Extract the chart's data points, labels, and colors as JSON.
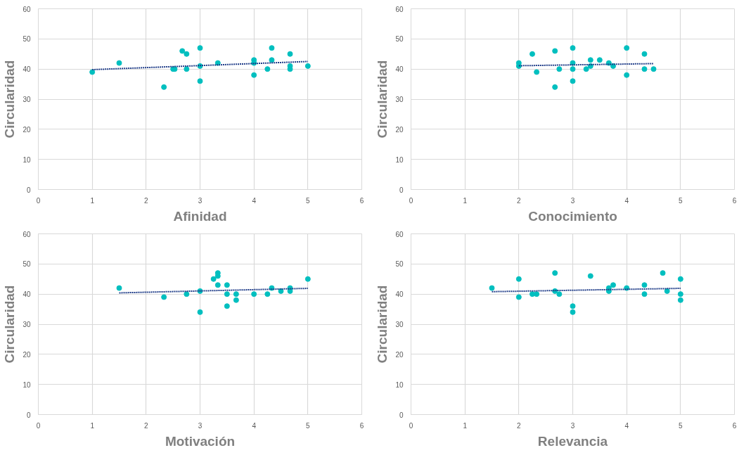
{
  "chart_data": [
    {
      "type": "scatter",
      "xlabel": "Afinidad",
      "ylabel": "Circularidad",
      "xlim": [
        0,
        6
      ],
      "ylim": [
        0,
        60
      ],
      "xticks": [
        0,
        1,
        2,
        3,
        4,
        5,
        6
      ],
      "yticks": [
        0,
        10,
        20,
        30,
        40,
        50,
        60
      ],
      "grid": true,
      "marker": "circle",
      "series": [
        {
          "color": "#00bfbf",
          "x": [
            1,
            1.5,
            2.33,
            2.5,
            2.53,
            2.67,
            2.75,
            2.75,
            3,
            3,
            3,
            3.33,
            4,
            4,
            4,
            4.25,
            4.33,
            4.33,
            4.67,
            4.67,
            4.67,
            5
          ],
          "values": [
            39,
            42,
            34,
            40,
            40,
            46,
            45,
            40,
            47,
            41,
            36,
            42,
            43,
            42,
            38,
            40,
            47,
            43,
            45,
            41,
            40,
            41
          ]
        },
        {
          "type": "line",
          "color": "#1f3c88",
          "line_style": "dotted",
          "marker": "none",
          "x": [
            1,
            5
          ],
          "values": [
            39.8,
            42.5
          ]
        }
      ]
    },
    {
      "type": "scatter",
      "xlabel": "Conocimiento",
      "ylabel": "Circularidad",
      "xlim": [
        0,
        6
      ],
      "ylim": [
        0,
        60
      ],
      "xticks": [
        0,
        1,
        2,
        3,
        4,
        5,
        6
      ],
      "yticks": [
        0,
        10,
        20,
        30,
        40,
        50,
        60
      ],
      "grid": true,
      "marker": "circle",
      "series": [
        {
          "color": "#00bfbf",
          "x": [
            2,
            2,
            2.25,
            2.33,
            2.67,
            2.67,
            2.75,
            3,
            3,
            3,
            3,
            3.25,
            3.33,
            3.33,
            3.5,
            3.67,
            3.75,
            4,
            4,
            4.33,
            4.33,
            4.5
          ],
          "values": [
            42,
            41,
            45,
            39,
            46,
            34,
            40,
            47,
            42,
            40,
            36,
            40,
            43,
            41,
            43,
            42,
            41,
            47,
            38,
            45,
            40,
            40
          ]
        },
        {
          "type": "line",
          "color": "#1f3c88",
          "line_style": "dotted",
          "marker": "none",
          "x": [
            2,
            4.5
          ],
          "values": [
            41.1,
            41.8
          ]
        }
      ]
    },
    {
      "type": "scatter",
      "xlabel": "Motivación",
      "ylabel": "Circularidad",
      "xlim": [
        0,
        6
      ],
      "ylim": [
        0,
        60
      ],
      "xticks": [
        0,
        1,
        2,
        3,
        4,
        5,
        6
      ],
      "yticks": [
        0,
        10,
        20,
        30,
        40,
        50,
        60
      ],
      "grid": true,
      "marker": "circle",
      "series": [
        {
          "color": "#00bfbf",
          "x": [
            1.5,
            2.33,
            2.75,
            3,
            3,
            3.25,
            3.33,
            3.33,
            3.33,
            3.5,
            3.5,
            3.5,
            3.67,
            3.67,
            4,
            4.25,
            4.33,
            4.5,
            4.67,
            4.67,
            5
          ],
          "values": [
            42,
            39,
            40,
            41,
            34,
            45,
            47,
            46,
            43,
            43,
            40,
            36,
            40,
            38,
            40,
            40,
            42,
            41,
            42,
            41,
            45
          ]
        },
        {
          "type": "line",
          "color": "#1f3c88",
          "line_style": "dotted",
          "marker": "none",
          "x": [
            1.5,
            5
          ],
          "values": [
            40.4,
            41.9
          ]
        }
      ]
    },
    {
      "type": "scatter",
      "xlabel": "Relevancia",
      "ylabel": "Circularidad",
      "xlim": [
        0,
        6
      ],
      "ylim": [
        0,
        60
      ],
      "xticks": [
        0,
        1,
        2,
        3,
        4,
        5,
        6
      ],
      "yticks": [
        0,
        10,
        20,
        30,
        40,
        50,
        60
      ],
      "grid": true,
      "marker": "circle",
      "series": [
        {
          "color": "#00bfbf",
          "x": [
            1.5,
            2,
            2,
            2.25,
            2.33,
            2.67,
            2.67,
            2.75,
            3,
            3,
            3.33,
            3.67,
            3.67,
            3.75,
            4,
            4.33,
            4.33,
            4.67,
            4.75,
            5,
            5,
            5
          ],
          "values": [
            42,
            45,
            39,
            40,
            40,
            47,
            41,
            40,
            36,
            34,
            46,
            42,
            41,
            43,
            42,
            43,
            40,
            47,
            41,
            45,
            40,
            38
          ]
        },
        {
          "type": "line",
          "color": "#1f3c88",
          "line_style": "dotted",
          "marker": "none",
          "x": [
            1.5,
            5
          ],
          "values": [
            40.8,
            41.9
          ]
        }
      ]
    }
  ]
}
